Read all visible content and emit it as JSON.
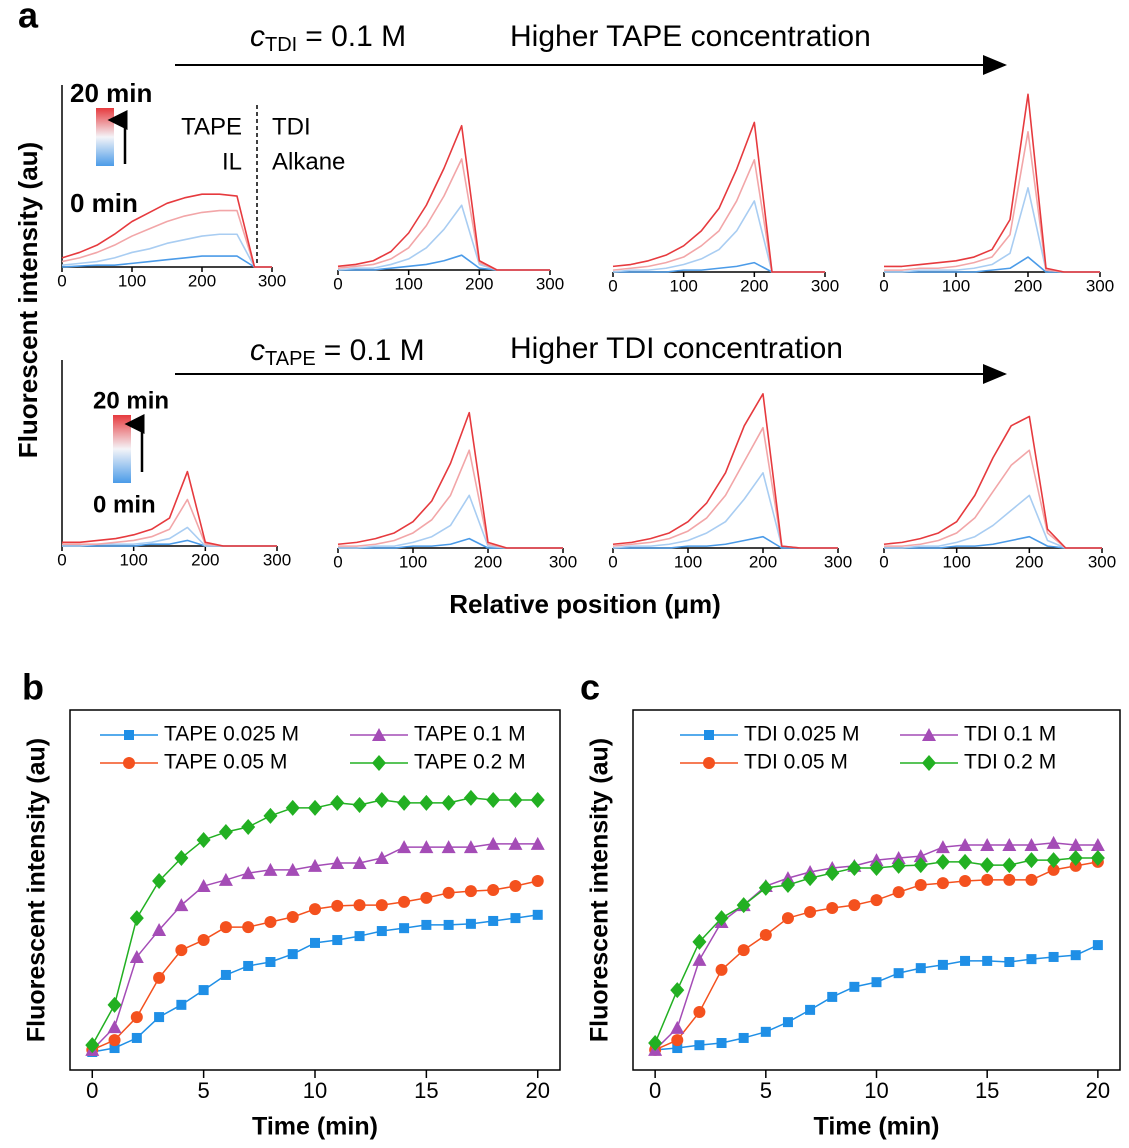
{
  "figure": {
    "panel_labels": [
      "a",
      "b",
      "c"
    ],
    "a_ylabel": "Fluorescent intensity (au)",
    "a_xlabel": "Relative position (μm)",
    "rows": [
      {
        "header": {
          "var": "c",
          "sub": "TDI",
          "rest": "= 0.1 M",
          "text": "Higher TAPE concentration"
        },
        "colorbar": {
          "top": "20 min",
          "bottom": "0 min"
        },
        "phases": [
          "TAPE",
          "TDI",
          "IL",
          "Alkane"
        ]
      },
      {
        "header": {
          "var": "c",
          "sub": "TAPE",
          "rest": "= 0.1 M",
          "text": "Higher TDI concentration"
        },
        "colorbar": {
          "top": "20 min",
          "bottom": "0 min"
        }
      }
    ]
  },
  "chart_data": [
    {
      "type": "line",
      "x": [
        0,
        25,
        50,
        75,
        100,
        125,
        150,
        175,
        200,
        225,
        250,
        275,
        300
      ],
      "xlim": [
        0,
        300
      ],
      "xticks": [
        0,
        100,
        200,
        300
      ],
      "ylim": [
        0,
        100
      ],
      "series": [
        {
          "color": "#4b9be8",
          "values": [
            0,
            0.5,
            1,
            1,
            2,
            3,
            4,
            5,
            6,
            6,
            6,
            0,
            0
          ]
        },
        {
          "color": "#a9cdf2",
          "values": [
            1,
            2,
            3,
            5,
            8,
            10,
            13,
            15,
            17,
            18,
            18,
            0,
            0
          ]
        },
        {
          "color": "#f2a6a8",
          "values": [
            3,
            5,
            8,
            12,
            17,
            21,
            25,
            28,
            30,
            31,
            31,
            0,
            0
          ]
        },
        {
          "color": "#e63a3e",
          "values": [
            5,
            8,
            12,
            18,
            25,
            30,
            35,
            38,
            40,
            40,
            39,
            0,
            0
          ]
        }
      ]
    },
    {
      "type": "line",
      "x": [
        0,
        25,
        50,
        75,
        100,
        125,
        150,
        175,
        200,
        225,
        250,
        275,
        300
      ],
      "xlim": [
        0,
        300
      ],
      "xticks": [
        0,
        100,
        200,
        300
      ],
      "ylim": [
        0,
        100
      ],
      "series": [
        {
          "color": "#4b9be8",
          "values": [
            0,
            0,
            0,
            1,
            2,
            3,
            5,
            8,
            1,
            0,
            0,
            0,
            0
          ]
        },
        {
          "color": "#a9cdf2",
          "values": [
            0,
            1,
            1,
            3,
            6,
            12,
            22,
            35,
            3,
            0,
            0,
            0,
            0
          ]
        },
        {
          "color": "#f2a6a8",
          "values": [
            1,
            2,
            3,
            6,
            12,
            24,
            40,
            60,
            4,
            0,
            0,
            0,
            0
          ]
        },
        {
          "color": "#e63a3e",
          "values": [
            2,
            3,
            5,
            10,
            20,
            35,
            55,
            78,
            5,
            0,
            0,
            0,
            0
          ]
        }
      ]
    },
    {
      "type": "line",
      "x": [
        0,
        25,
        50,
        75,
        100,
        125,
        150,
        175,
        200,
        225,
        250,
        275,
        300
      ],
      "xlim": [
        0,
        300
      ],
      "xticks": [
        0,
        100,
        200,
        300
      ],
      "ylim": [
        0,
        100
      ],
      "series": [
        {
          "color": "#4b9be8",
          "values": [
            0,
            0,
            0,
            0,
            1,
            1,
            2,
            3,
            5,
            0,
            0,
            0,
            0
          ]
        },
        {
          "color": "#a9cdf2",
          "values": [
            0,
            1,
            1,
            2,
            4,
            7,
            12,
            22,
            38,
            0,
            0,
            0,
            0
          ]
        },
        {
          "color": "#f2a6a8",
          "values": [
            1,
            2,
            3,
            5,
            8,
            14,
            22,
            38,
            60,
            0,
            0,
            0,
            0
          ]
        },
        {
          "color": "#e63a3e",
          "values": [
            3,
            4,
            6,
            9,
            14,
            22,
            34,
            55,
            80,
            0,
            0,
            0,
            0
          ]
        }
      ]
    },
    {
      "type": "line",
      "x": [
        0,
        25,
        50,
        75,
        100,
        125,
        150,
        175,
        200,
        225,
        250,
        275,
        300
      ],
      "xlim": [
        0,
        300
      ],
      "xticks": [
        0,
        100,
        200,
        300
      ],
      "ylim": [
        0,
        100
      ],
      "series": [
        {
          "color": "#4b9be8",
          "values": [
            0,
            0,
            0,
            0,
            0,
            0,
            1,
            2,
            8,
            0,
            0,
            0,
            0
          ]
        },
        {
          "color": "#a9cdf2",
          "values": [
            0,
            0,
            1,
            1,
            1,
            2,
            4,
            10,
            45,
            1,
            0,
            0,
            0
          ]
        },
        {
          "color": "#f2a6a8",
          "values": [
            1,
            1,
            2,
            2,
            3,
            5,
            8,
            20,
            75,
            1,
            0,
            0,
            0
          ]
        },
        {
          "color": "#e63a3e",
          "values": [
            3,
            3,
            4,
            5,
            6,
            8,
            12,
            28,
            95,
            2,
            0,
            0,
            0
          ]
        }
      ]
    },
    {
      "type": "line",
      "x": [
        0,
        25,
        50,
        75,
        100,
        125,
        150,
        175,
        200,
        225,
        250,
        275,
        300
      ],
      "xlim": [
        0,
        300
      ],
      "xticks": [
        0,
        100,
        200,
        300
      ],
      "ylim": [
        0,
        100
      ],
      "series": [
        {
          "color": "#4b9be8",
          "values": [
            0,
            0,
            0,
            0,
            0,
            1,
            1,
            3,
            0,
            0,
            0,
            0,
            0
          ]
        },
        {
          "color": "#a9cdf2",
          "values": [
            0,
            0,
            1,
            1,
            1,
            2,
            4,
            10,
            0,
            0,
            0,
            0,
            0
          ]
        },
        {
          "color": "#f2a6a8",
          "values": [
            1,
            1,
            1,
            2,
            3,
            5,
            9,
            25,
            1,
            0,
            0,
            0,
            0
          ]
        },
        {
          "color": "#e63a3e",
          "values": [
            2,
            2,
            3,
            4,
            6,
            9,
            15,
            40,
            2,
            0,
            0,
            0,
            0
          ]
        }
      ]
    },
    {
      "type": "line",
      "x": [
        0,
        25,
        50,
        75,
        100,
        125,
        150,
        175,
        200,
        225,
        250,
        275,
        300
      ],
      "xlim": [
        0,
        300
      ],
      "xticks": [
        0,
        100,
        200,
        300
      ],
      "ylim": [
        0,
        100
      ],
      "series": [
        {
          "color": "#4b9be8",
          "values": [
            0,
            0,
            0,
            0,
            1,
            1,
            2,
            5,
            0,
            0,
            0,
            0,
            0
          ]
        },
        {
          "color": "#a9cdf2",
          "values": [
            0,
            0,
            1,
            1,
            3,
            6,
            12,
            28,
            1,
            0,
            0,
            0,
            0
          ]
        },
        {
          "color": "#f2a6a8",
          "values": [
            1,
            1,
            2,
            4,
            8,
            15,
            28,
            52,
            2,
            0,
            0,
            0,
            0
          ]
        },
        {
          "color": "#e63a3e",
          "values": [
            2,
            3,
            5,
            8,
            14,
            25,
            45,
            72,
            3,
            0,
            0,
            0,
            0
          ]
        }
      ]
    },
    {
      "type": "line",
      "x": [
        0,
        25,
        50,
        75,
        100,
        125,
        150,
        175,
        200,
        225,
        250,
        275,
        300
      ],
      "xlim": [
        0,
        300
      ],
      "xticks": [
        0,
        100,
        200,
        300
      ],
      "ylim": [
        0,
        100
      ],
      "series": [
        {
          "color": "#4b9be8",
          "values": [
            0,
            0,
            0,
            0,
            1,
            1,
            2,
            4,
            6,
            0,
            0,
            0,
            0
          ]
        },
        {
          "color": "#a9cdf2",
          "values": [
            0,
            1,
            1,
            2,
            4,
            8,
            14,
            26,
            40,
            1,
            0,
            0,
            0
          ]
        },
        {
          "color": "#f2a6a8",
          "values": [
            1,
            2,
            3,
            5,
            9,
            16,
            28,
            46,
            64,
            1,
            0,
            0,
            0
          ]
        },
        {
          "color": "#e63a3e",
          "values": [
            2,
            3,
            5,
            8,
            14,
            24,
            40,
            65,
            82,
            1,
            0,
            0,
            0
          ]
        }
      ]
    },
    {
      "type": "line",
      "x": [
        0,
        25,
        50,
        75,
        100,
        125,
        150,
        175,
        200,
        225,
        250,
        275,
        300
      ],
      "xlim": [
        0,
        300
      ],
      "xticks": [
        0,
        100,
        200,
        300
      ],
      "ylim": [
        0,
        100
      ],
      "series": [
        {
          "color": "#4b9be8",
          "values": [
            0,
            0,
            0,
            0,
            1,
            1,
            2,
            4,
            6,
            1,
            0,
            0,
            0
          ]
        },
        {
          "color": "#a9cdf2",
          "values": [
            0,
            0,
            1,
            1,
            3,
            6,
            12,
            20,
            28,
            4,
            0,
            0,
            0
          ]
        },
        {
          "color": "#f2a6a8",
          "values": [
            1,
            1,
            2,
            4,
            8,
            16,
            30,
            44,
            52,
            8,
            0,
            0,
            0
          ]
        },
        {
          "color": "#e63a3e",
          "values": [
            2,
            3,
            5,
            8,
            14,
            28,
            48,
            65,
            70,
            10,
            0,
            0,
            0
          ]
        }
      ]
    },
    {
      "type": "line",
      "xlabel": "Time (min)",
      "ylabel": "Fluorescent intensity (au)",
      "legend": "top",
      "x": [
        0,
        1,
        2,
        3,
        4,
        5,
        6,
        7,
        8,
        9,
        10,
        11,
        12,
        13,
        14,
        15,
        16,
        17,
        18,
        19,
        20
      ],
      "xlim": [
        -1,
        21
      ],
      "xticks": [
        0,
        5,
        10,
        15,
        20
      ],
      "ylim": [
        0,
        100
      ],
      "series": [
        {
          "name": "TAPE 0.025 M",
          "color": "#1f8fe6",
          "marker": "square",
          "values": [
            5,
            6.1,
            8.9,
            14.7,
            18.1,
            22.2,
            26.4,
            28.9,
            30,
            32.2,
            35.3,
            36.1,
            37.2,
            38.6,
            39.4,
            40.3,
            40.3,
            40.6,
            41.4,
            42.2,
            43.1
          ]
        },
        {
          "name": "TAPE 0.05 M",
          "color": "#f4511e",
          "marker": "circle",
          "values": [
            5.6,
            8.3,
            14.7,
            25.6,
            33.3,
            36.1,
            39.7,
            39.7,
            41.1,
            42.5,
            44.7,
            45.6,
            45.8,
            45.8,
            46.7,
            47.8,
            49.2,
            49.7,
            50,
            51.1,
            52.5
          ]
        },
        {
          "name": "TAPE 0.1 M",
          "color": "#a44cb6",
          "marker": "triangle",
          "values": [
            5.6,
            11.9,
            31.4,
            38.9,
            45.8,
            51.1,
            52.8,
            54.7,
            55.6,
            55.6,
            56.7,
            57.5,
            57.5,
            58.9,
            61.9,
            61.9,
            61.9,
            61.9,
            62.8,
            62.8,
            62.8
          ]
        },
        {
          "name": "TAPE 0.2 M",
          "color": "#22b022",
          "marker": "diamond",
          "values": [
            6.9,
            18.1,
            42.2,
            52.5,
            58.9,
            63.9,
            66.1,
            67.5,
            70.6,
            72.8,
            72.8,
            74.2,
            73.6,
            75,
            74.2,
            74.2,
            74.2,
            75.6,
            75,
            75,
            75
          ]
        }
      ]
    },
    {
      "type": "line",
      "xlabel": "Time (min)",
      "ylabel": "Fluorescent intensity (au)",
      "legend": "top",
      "x": [
        0,
        1,
        2,
        3,
        4,
        5,
        6,
        7,
        8,
        9,
        10,
        11,
        12,
        13,
        14,
        15,
        16,
        17,
        18,
        19,
        20
      ],
      "xlim": [
        -1,
        21
      ],
      "xticks": [
        0,
        5,
        10,
        15,
        20
      ],
      "ylim": [
        0,
        100
      ],
      "series": [
        {
          "name": "TDI 0.025 M",
          "color": "#1f8fe6",
          "marker": "square",
          "values": [
            5.6,
            6.1,
            6.9,
            7.5,
            8.9,
            10.6,
            13.3,
            16.7,
            20.3,
            23.1,
            24.4,
            26.9,
            28.3,
            29.2,
            30.3,
            30.3,
            30,
            30.8,
            31.4,
            31.9,
            34.7
          ]
        },
        {
          "name": "TDI 0.05 M",
          "color": "#f4511e",
          "marker": "circle",
          "values": [
            5.6,
            8.3,
            16.1,
            27.8,
            33.3,
            37.5,
            42.2,
            43.9,
            45,
            45.8,
            47.2,
            49.4,
            51.4,
            51.9,
            52.5,
            52.8,
            52.8,
            52.8,
            55.6,
            56.7,
            57.8
          ]
        },
        {
          "name": "TDI 0.1 M",
          "color": "#a44cb6",
          "marker": "triangle",
          "values": [
            5.6,
            11.7,
            30.6,
            41.1,
            45.8,
            51.1,
            53.3,
            55,
            56.1,
            56.7,
            58.3,
            58.9,
            59.4,
            61.9,
            62.5,
            62.5,
            62.5,
            62.5,
            63.1,
            62.5,
            62.5
          ]
        },
        {
          "name": "TDI 0.2 M",
          "color": "#22b022",
          "marker": "diamond",
          "values": [
            7.5,
            22.2,
            35.6,
            42.2,
            45.8,
            50.6,
            51.4,
            53.3,
            54.7,
            56.1,
            56.1,
            56.7,
            56.9,
            57.8,
            57.8,
            56.9,
            56.9,
            58.3,
            58.3,
            58.9,
            58.9
          ]
        }
      ]
    }
  ]
}
